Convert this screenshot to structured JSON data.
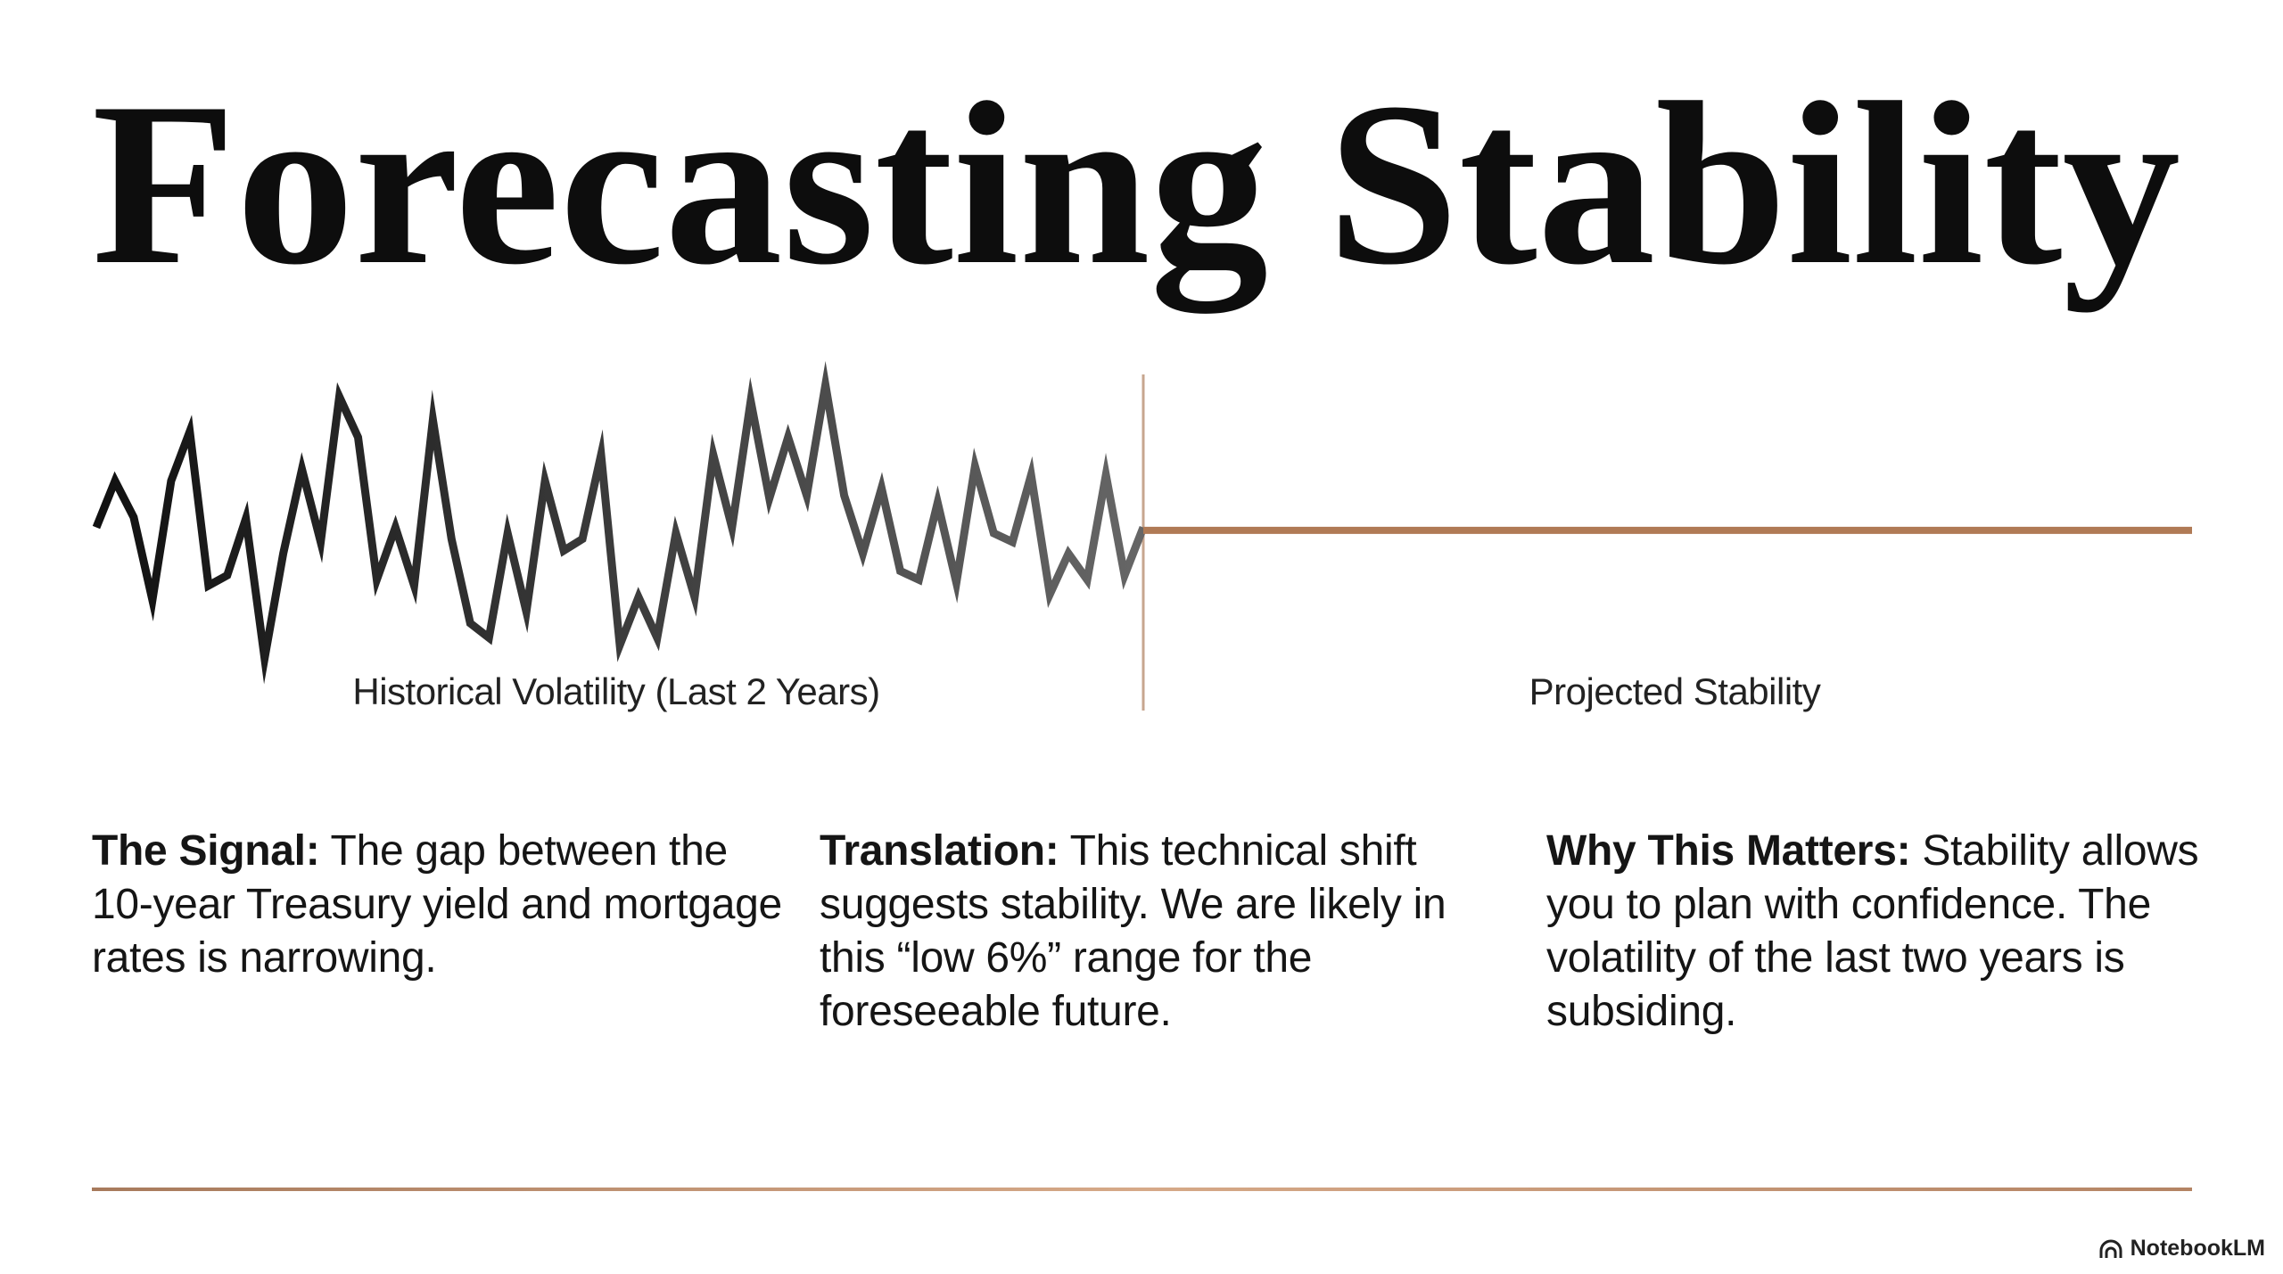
{
  "title": "Forecasting Stability",
  "chart_data": {
    "type": "line",
    "title": "",
    "xlabel": "",
    "ylabel": "",
    "historical": {
      "label": "Historical Volatility (Last 2 Years)",
      "values": [
        8.8,
        12,
        9.5,
        3.8,
        12,
        15.4,
        4.8,
        5.5,
        9.4,
        -0.2,
        7,
        12.8,
        7.8,
        17.8,
        15,
        5.2,
        8.8,
        4.8,
        16.2,
        8,
        2.2,
        1.2,
        8.4,
        3,
        12,
        7.2,
        8,
        13.8,
        0.7,
        4,
        1.2,
        8.4,
        4,
        13.8,
        8.8,
        17.5,
        10.8,
        15,
        11,
        18.6,
        11,
        7,
        11.5,
        5.8,
        5.2,
        10.5,
        5,
        13,
        8.4,
        7.8,
        12.4,
        4.2,
        7,
        5.2,
        12.4,
        5.5,
        8.8
      ],
      "color_start": "#111111",
      "color_end": "#666666"
    },
    "projected": {
      "label": "Projected Stability",
      "value": 8.6,
      "color": "#b07a55"
    },
    "grid": false
  },
  "columns": [
    {
      "heading": "The Signal:",
      "body": " The gap between the 10-year Treasury yield and mortgage rates is narrowing."
    },
    {
      "heading": "Translation:",
      "body": " This technical shift suggests stability. We are likely in this “low 6%” range for the foreseeable future."
    },
    {
      "heading": "Why This Matters:",
      "body": " Stability allows you to plan with confidence. The volatility of the last two years is subsiding."
    }
  ],
  "brand": {
    "name": "NotebookLM",
    "icon": "notebooklm-logo-icon"
  },
  "colors": {
    "accent": "#b07a55",
    "text": "#111111"
  }
}
